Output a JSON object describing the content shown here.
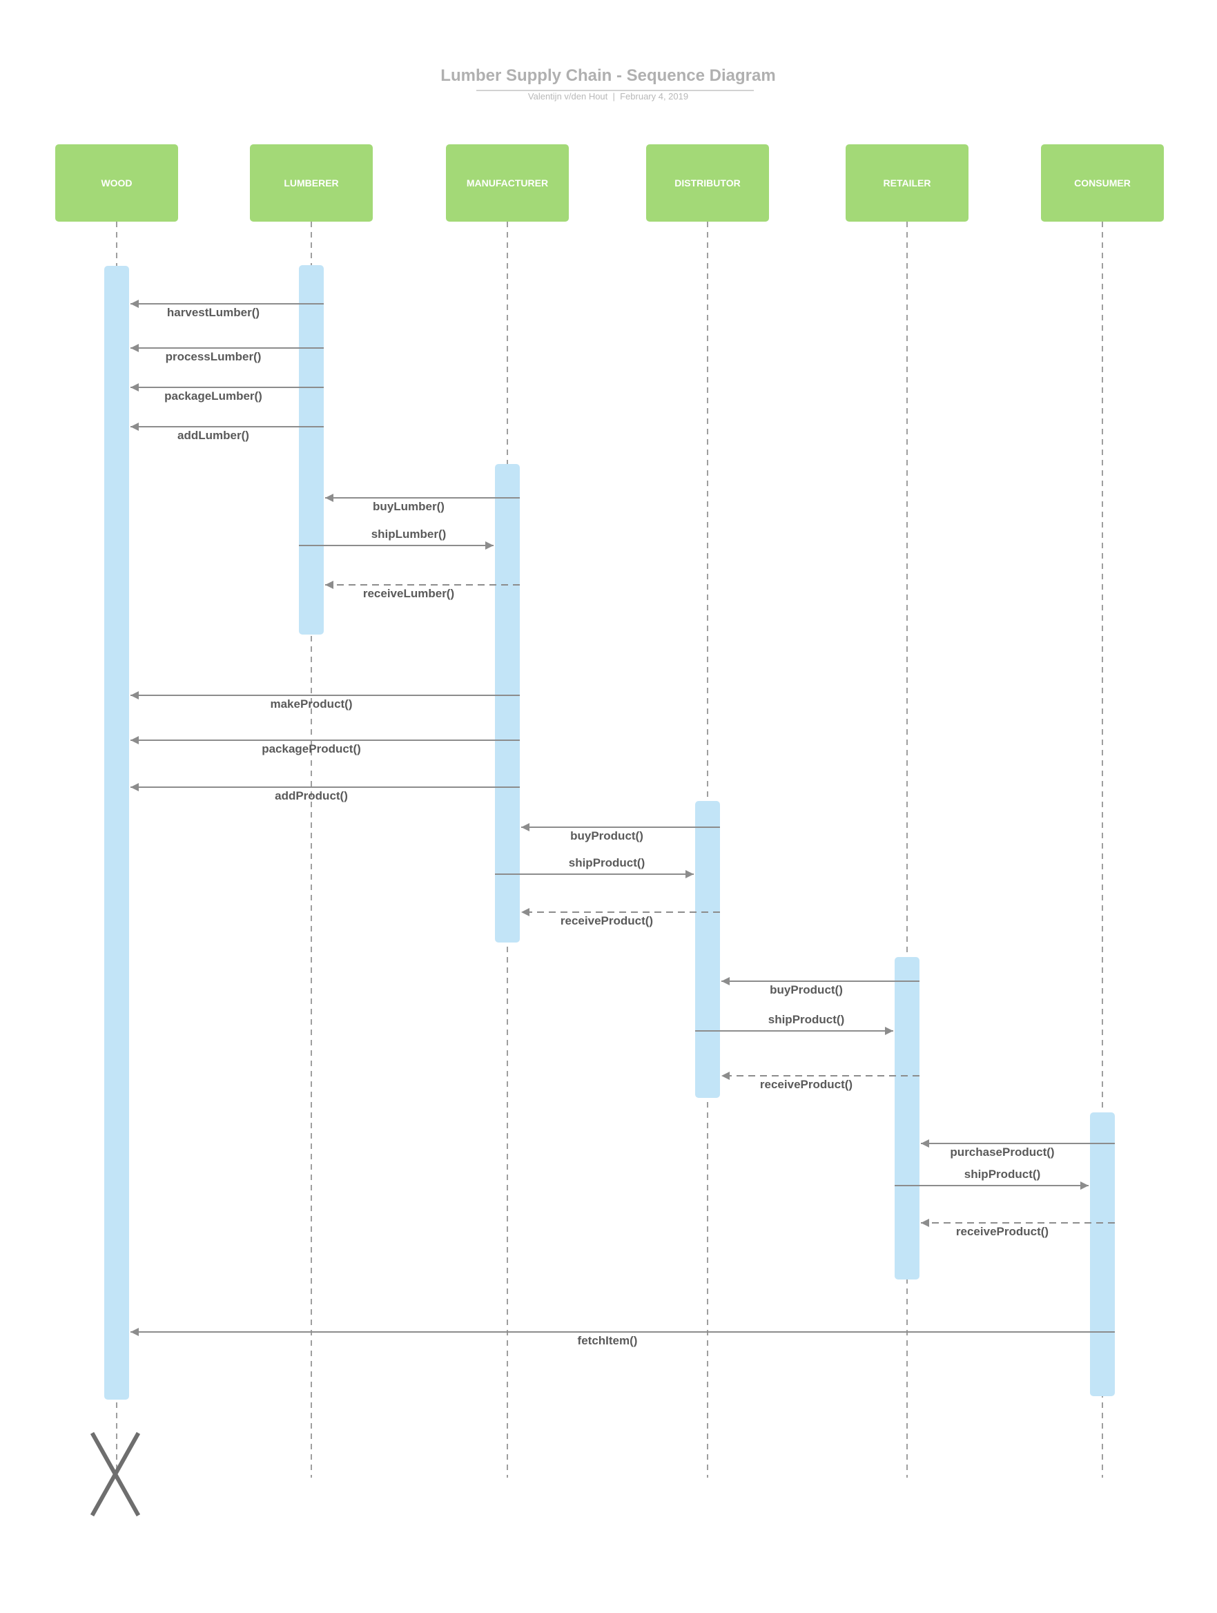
{
  "header": {
    "title": "Lumber Supply Chain - Sequence Diagram",
    "subtitle": "Valentijn v/den Hout  |  February 4, 2019"
  },
  "colors": {
    "actor_fill": "#a3d977",
    "actor_text": "#ffffff",
    "activation_fill": "#c2e4f7",
    "line": "#8c8c8c",
    "label_text": "#5a5a5a",
    "title_text": "#b0b0b0"
  },
  "actors": [
    {
      "id": "wood",
      "label": "WOOD"
    },
    {
      "id": "lumberer",
      "label": "LUMBERER"
    },
    {
      "id": "manufacturer",
      "label": "MANUFACTURER"
    },
    {
      "id": "distributor",
      "label": "DISTRIBUTOR"
    },
    {
      "id": "retailer",
      "label": "RETAILER"
    },
    {
      "id": "consumer",
      "label": "CONSUMER"
    }
  ],
  "messages": [
    {
      "label": "harvestLumber()",
      "from": "lumberer",
      "to": "wood",
      "style": "solid"
    },
    {
      "label": "processLumber()",
      "from": "lumberer",
      "to": "wood",
      "style": "solid"
    },
    {
      "label": "packageLumber()",
      "from": "lumberer",
      "to": "wood",
      "style": "solid"
    },
    {
      "label": "addLumber()",
      "from": "lumberer",
      "to": "wood",
      "style": "solid"
    },
    {
      "label": "buyLumber()",
      "from": "manufacturer",
      "to": "lumberer",
      "style": "solid"
    },
    {
      "label": "shipLumber()",
      "from": "lumberer",
      "to": "manufacturer",
      "style": "solid"
    },
    {
      "label": "receiveLumber()",
      "from": "manufacturer",
      "to": "lumberer",
      "style": "dashed"
    },
    {
      "label": "makeProduct()",
      "from": "manufacturer",
      "to": "wood",
      "style": "solid"
    },
    {
      "label": "packageProduct()",
      "from": "manufacturer",
      "to": "wood",
      "style": "solid"
    },
    {
      "label": "addProduct()",
      "from": "manufacturer",
      "to": "wood",
      "style": "solid"
    },
    {
      "label": "buyProduct()",
      "from": "distributor",
      "to": "manufacturer",
      "style": "solid"
    },
    {
      "label": "shipProduct()",
      "from": "manufacturer",
      "to": "distributor",
      "style": "solid"
    },
    {
      "label": "receiveProduct()",
      "from": "distributor",
      "to": "manufacturer",
      "style": "dashed"
    },
    {
      "label": "buyProduct()",
      "from": "retailer",
      "to": "distributor",
      "style": "solid"
    },
    {
      "label": "shipProduct()",
      "from": "distributor",
      "to": "retailer",
      "style": "solid"
    },
    {
      "label": "receiveProduct()",
      "from": "retailer",
      "to": "distributor",
      "style": "dashed"
    },
    {
      "label": "purchaseProduct()",
      "from": "consumer",
      "to": "retailer",
      "style": "solid"
    },
    {
      "label": "shipProduct()",
      "from": "retailer",
      "to": "consumer",
      "style": "solid"
    },
    {
      "label": "receiveProduct()",
      "from": "consumer",
      "to": "retailer",
      "style": "dashed"
    },
    {
      "label": "fetchItem()",
      "from": "consumer",
      "to": "wood",
      "style": "solid"
    }
  ],
  "activations": [
    {
      "actor": "wood"
    },
    {
      "actor": "lumberer"
    },
    {
      "actor": "manufacturer"
    },
    {
      "actor": "distributor"
    },
    {
      "actor": "retailer"
    },
    {
      "actor": "consumer"
    }
  ],
  "destroyed_actor": "wood"
}
